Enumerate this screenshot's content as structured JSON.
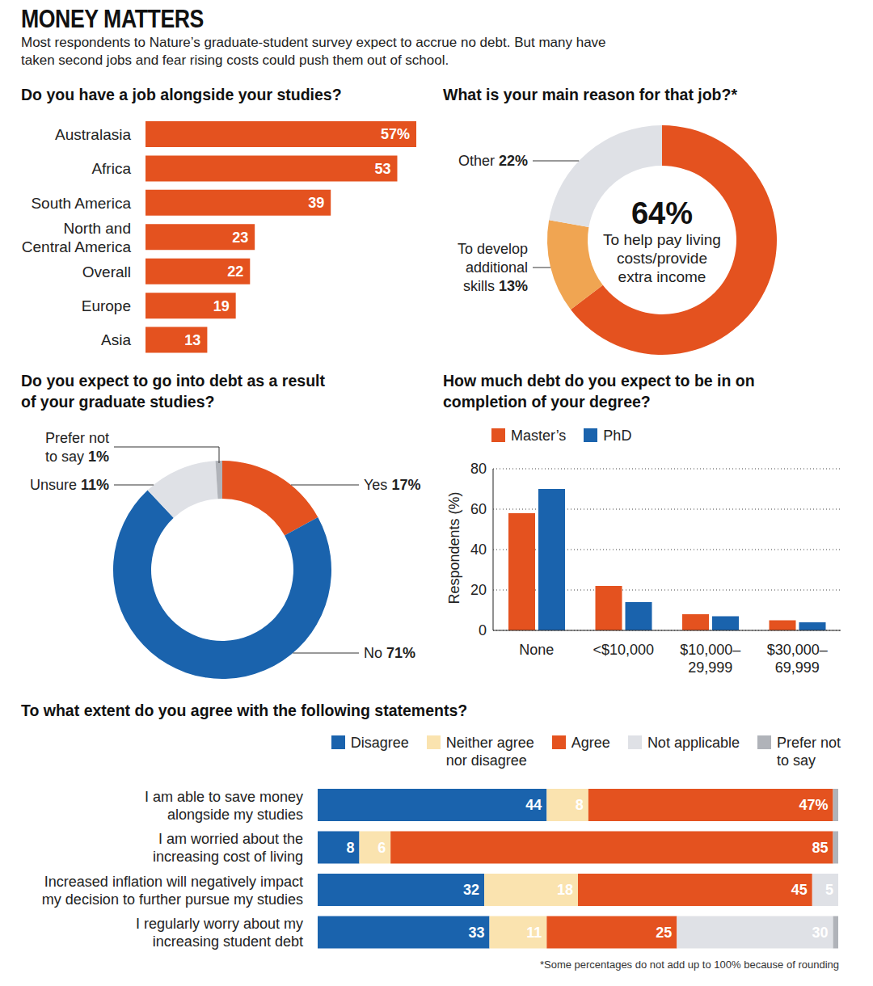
{
  "title": "MONEY MATTERS",
  "subtitle": "Most respondents to Nature’s graduate-student survey expect to accrue no debt. But many have taken second jobs and fear rising costs could push them out of school.",
  "note": "*Some percentages do not add up to 100% because of rounding",
  "chart_data": [
    {
      "type": "bar",
      "title": "Do you have a job alongside your studies?",
      "orientation": "horizontal",
      "categories": [
        "Australasia",
        "Africa",
        "South America",
        "North and Central America",
        "Overall",
        "Europe",
        "Asia"
      ],
      "values": [
        57,
        53,
        39,
        23,
        22,
        19,
        13
      ],
      "value_labels": [
        "57%",
        "53",
        "39",
        "23",
        "22",
        "19",
        "13"
      ],
      "color": "#e4521f",
      "xlim": [
        0,
        57
      ],
      "data_labels": true,
      "tick_labels": "y"
    },
    {
      "type": "pie",
      "title": "What is your main reason for that job?*",
      "categories": [
        "To help pay living costs/provide extra income",
        "To develop additional skills",
        "Other"
      ],
      "values": [
        64,
        13,
        22
      ],
      "value_labels": [
        "64%",
        "13%",
        "22%"
      ],
      "colors": [
        "#e4521f",
        "#f0a552",
        "#dfe1e6"
      ],
      "data_labels": true
    },
    {
      "type": "pie",
      "title": "Do you expect to go into debt as a result of your graduate studies?",
      "categories": [
        "Yes",
        "No",
        "Unsure",
        "Prefer not to say"
      ],
      "values": [
        17,
        71,
        11,
        1
      ],
      "value_labels": [
        "17%",
        "71%",
        "11%",
        "1%"
      ],
      "colors": [
        "#e4521f",
        "#1a63ad",
        "#dfe1e6",
        "#b0b3b9"
      ],
      "data_labels": true
    },
    {
      "type": "bar",
      "title": "How much debt do you expect to be in on completion of your degree?",
      "categories": [
        "None",
        "<$10,000",
        "$10,000–29,999",
        "$30,000–69,999"
      ],
      "series": [
        {
          "name": "Master’s",
          "color": "#e4521f",
          "values": [
            58,
            22,
            8,
            5
          ]
        },
        {
          "name": "PhD",
          "color": "#1a63ad",
          "values": [
            70,
            14,
            7,
            4
          ]
        }
      ],
      "ylabel": "Respondents (%)",
      "ylim": [
        0,
        80
      ],
      "yticks": [
        0,
        20,
        40,
        60,
        80
      ],
      "grid": true,
      "legend": "top-left"
    },
    {
      "type": "bar",
      "title": "To what extent do you agree with the following statements?",
      "orientation": "horizontal",
      "stacked": true,
      "categories": [
        "I am able to save money alongside my studies",
        "I am worried about the increasing cost of living",
        "Increased inflation will negatively impact my decision to further pursue my studies",
        "I regularly worry about my increasing student debt"
      ],
      "series": [
        {
          "name": "Disagree",
          "color": "#1a63ad",
          "values": [
            44,
            8,
            32,
            33
          ],
          "value_labels": [
            "44",
            "8",
            "32",
            "33"
          ]
        },
        {
          "name": "Neither agree nor disagree",
          "color": "#fae3af",
          "values": [
            8,
            6,
            18,
            11
          ],
          "value_labels": [
            "8",
            "6",
            "18",
            "11"
          ]
        },
        {
          "name": "Agree",
          "color": "#e4521f",
          "values": [
            47,
            85,
            45,
            25
          ],
          "value_labels": [
            "47%",
            "85",
            "45",
            "25"
          ]
        },
        {
          "name": "Not applicable",
          "color": "#dfe1e6",
          "values": [
            0,
            0,
            5,
            30
          ],
          "value_labels": [
            null,
            null,
            "5",
            "30"
          ]
        },
        {
          "name": "Prefer not to say",
          "color": "#b0b3b9",
          "values": [
            1,
            1,
            0,
            1
          ],
          "value_labels": [
            null,
            null,
            null,
            null
          ]
        }
      ],
      "xlim": [
        0,
        100
      ],
      "data_labels": true,
      "tick_labels": "y",
      "legend": "top-right"
    }
  ]
}
